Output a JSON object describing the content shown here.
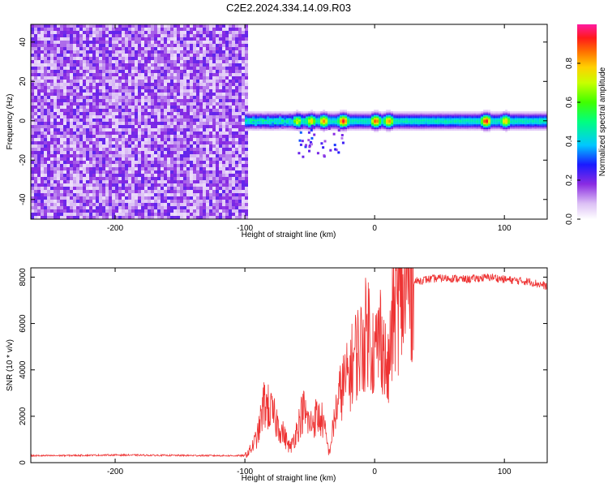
{
  "title": "C2E2.2024.334.14.09.R03",
  "chart_data": [
    {
      "type": "heatmap",
      "xlabel": "Height of straight line (km)",
      "ylabel": "Frequency (Hz)",
      "xlim": [
        -265,
        133
      ],
      "ylim": [
        -50,
        49
      ],
      "xticks": [
        -200,
        -100,
        0,
        100
      ],
      "yticks": [
        -40,
        -20,
        0,
        20,
        40
      ],
      "colorbar": {
        "label": "Normalized spectral amplitude",
        "range": [
          0,
          1
        ],
        "ticks": [
          0.0,
          0.2,
          0.4,
          0.6,
          0.8
        ]
      },
      "noise_region": {
        "x_from": -265,
        "x_to": -100,
        "mean_amplitude": 0.15
      },
      "signal_band": {
        "x_from": -100,
        "x_to": 133,
        "center_hz": 0,
        "half_width_hz": 3
      },
      "peaks": [
        {
          "x": -60,
          "amplitude": 0.75
        },
        {
          "x": -50,
          "amplitude": 0.8
        },
        {
          "x": -40,
          "amplitude": 0.85
        },
        {
          "x": -25,
          "amplitude": 0.95
        },
        {
          "x": 0,
          "amplitude": 0.9
        },
        {
          "x": 10,
          "amplitude": 0.85
        },
        {
          "x": 85,
          "amplitude": 0.95
        },
        {
          "x": 100,
          "amplitude": 0.8
        }
      ]
    },
    {
      "type": "line",
      "xlabel": "Height of straight line (km)",
      "ylabel": "SNR (10 * v/v)",
      "xlim": [
        -265,
        133
      ],
      "ylim": [
        0,
        8400
      ],
      "xticks": [
        -200,
        -100,
        0,
        100
      ],
      "yticks": [
        0,
        2000,
        4000,
        6000,
        8000
      ],
      "series": [
        {
          "name": "SNR",
          "color": "#ee3333",
          "x": [
            -265,
            -250,
            -200,
            -150,
            -110,
            -100,
            -95,
            -90,
            -85,
            -80,
            -75,
            -70,
            -65,
            -60,
            -55,
            -50,
            -45,
            -40,
            -35,
            -30,
            -25,
            -20,
            -15,
            -10,
            -5,
            0,
            5,
            10,
            15,
            20,
            25,
            30,
            40,
            50,
            60,
            70,
            80,
            90,
            100,
            110,
            120,
            133
          ],
          "values": [
            300,
            300,
            330,
            310,
            300,
            300,
            600,
            1200,
            2600,
            2200,
            1700,
            1200,
            600,
            1400,
            2300,
            1600,
            2000,
            1800,
            400,
            2200,
            3300,
            3700,
            4700,
            5000,
            5900,
            4600,
            5700,
            3600,
            6700,
            6900,
            7400,
            7800,
            7900,
            7950,
            7950,
            7900,
            7950,
            8000,
            7900,
            7850,
            7800,
            7600
          ]
        }
      ]
    }
  ]
}
